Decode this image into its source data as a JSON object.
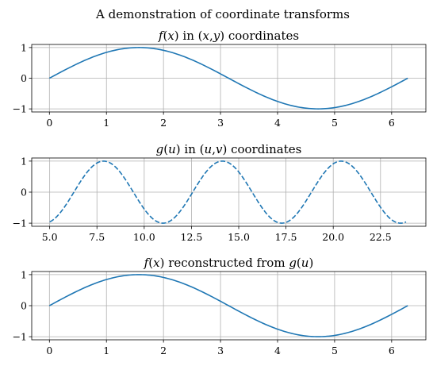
{
  "figure": {
    "suptitle": "A demonstration of coordinate transforms"
  },
  "chart_data": [
    {
      "type": "line",
      "title": "f(x) in (x,y) coordinates",
      "title_parts": [
        {
          "t": "f",
          "i": true
        },
        {
          "t": "(",
          "i": false
        },
        {
          "t": "x",
          "i": true
        },
        {
          "t": ")",
          "i": false
        },
        {
          "t": " in ",
          "i": false
        },
        {
          "t": "(",
          "i": false
        },
        {
          "t": "x",
          "i": true
        },
        {
          "t": ",",
          "i": false
        },
        {
          "t": "y",
          "i": true
        },
        {
          "t": ")",
          "i": false
        },
        {
          "t": " coordinates",
          "i": false
        }
      ],
      "xlim": [
        -0.31,
        6.6
      ],
      "ylim": [
        -1.1,
        1.1
      ],
      "xticks": [
        0,
        1,
        2,
        3,
        4,
        5,
        6
      ],
      "xtick_labels": [
        "0",
        "1",
        "2",
        "3",
        "4",
        "5",
        "6"
      ],
      "yticks": [
        -1,
        0,
        1
      ],
      "ytick_labels": [
        "−1",
        "0",
        "1"
      ],
      "grid": true,
      "series": [
        {
          "function": "sin",
          "x_start": 0,
          "x_end": 6.2832,
          "samples": 200,
          "color": "#1f77b4",
          "linestyle": "solid"
        }
      ]
    },
    {
      "type": "line",
      "title": "g(u) in (u,v) coordinates",
      "title_parts": [
        {
          "t": "g",
          "i": true
        },
        {
          "t": "(",
          "i": false
        },
        {
          "t": "u",
          "i": true
        },
        {
          "t": ")",
          "i": false
        },
        {
          "t": " in ",
          "i": false
        },
        {
          "t": "(",
          "i": false
        },
        {
          "t": "u",
          "i": true
        },
        {
          "t": ",",
          "i": false
        },
        {
          "t": "v",
          "i": true
        },
        {
          "t": ")",
          "i": false
        },
        {
          "t": " coordinates",
          "i": false
        }
      ],
      "xlim": [
        4.05,
        24.9
      ],
      "ylim": [
        -1.1,
        1.1
      ],
      "xticks": [
        5.0,
        7.5,
        10.0,
        12.5,
        15.0,
        17.5,
        20.0,
        22.5
      ],
      "xtick_labels": [
        "5.0",
        "7.5",
        "10.0",
        "12.5",
        "15.0",
        "17.5",
        "20.0",
        "22.5"
      ],
      "yticks": [
        -1,
        0,
        1
      ],
      "ytick_labels": [
        "−1",
        "0",
        "1"
      ],
      "grid": true,
      "series": [
        {
          "function": "sin",
          "x_start": 5.0,
          "x_end": 23.85,
          "samples": 400,
          "color": "#1f77b4",
          "linestyle": "dashed"
        }
      ]
    },
    {
      "type": "line",
      "title": "f(x) reconstructed from g(u)",
      "title_parts": [
        {
          "t": "f",
          "i": true
        },
        {
          "t": "(",
          "i": false
        },
        {
          "t": "x",
          "i": true
        },
        {
          "t": ")",
          "i": false
        },
        {
          "t": " reconstructed from ",
          "i": false
        },
        {
          "t": "g",
          "i": true
        },
        {
          "t": "(",
          "i": false
        },
        {
          "t": "u",
          "i": true
        },
        {
          "t": ")",
          "i": false
        }
      ],
      "xlim": [
        -0.31,
        6.6
      ],
      "ylim": [
        -1.1,
        1.1
      ],
      "xticks": [
        0,
        1,
        2,
        3,
        4,
        5,
        6
      ],
      "xtick_labels": [
        "0",
        "1",
        "2",
        "3",
        "4",
        "5",
        "6"
      ],
      "yticks": [
        -1,
        0,
        1
      ],
      "ytick_labels": [
        "−1",
        "0",
        "1"
      ],
      "grid": true,
      "series": [
        {
          "function": "sin",
          "x_start": 0,
          "x_end": 6.2832,
          "samples": 200,
          "color": "#1f77b4",
          "linestyle": "solid"
        }
      ]
    }
  ]
}
